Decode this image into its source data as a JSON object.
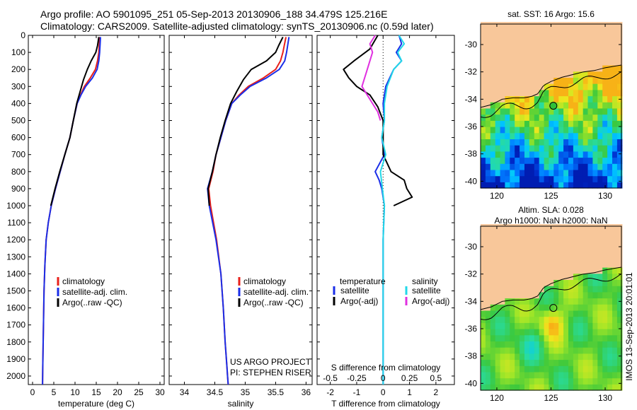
{
  "header": {
    "line1": "Argo profile: AO 5901095_251 05-Sep-2013 20130906_188 34.479S 125.216E",
    "line2": "Climatology: CARS2009. Satellite-adjusted climatology: synTS_20130906.nc (0.59d later)"
  },
  "colors": {
    "climatology": "#e8201a",
    "satellite": "#1a2ee8",
    "argo": "#000000",
    "salinity_satellite": "#22d8e8",
    "salinity_argo": "#e030e0",
    "land": "#f8c79a"
  },
  "watermark": "IMOS 13-Sep-2013 20:01:01",
  "project": {
    "line1": "US ARGO PROJECT",
    "line2": "PI: STEPHEN RISER"
  },
  "chart_data": [
    {
      "type": "line",
      "xlabel": "temperature (deg C)",
      "xlim": [
        -1,
        31
      ],
      "ylim": [
        2050,
        0
      ],
      "xticks": [
        0,
        5,
        10,
        15,
        20,
        25,
        30
      ],
      "yticks": [
        0,
        100,
        200,
        300,
        400,
        500,
        600,
        700,
        800,
        900,
        1000,
        1100,
        1200,
        1300,
        1400,
        1500,
        1600,
        1700,
        1800,
        1900,
        2000
      ],
      "legend": [
        "climatology",
        "satellite-adj. clim.",
        "Argo(..raw -QC)"
      ],
      "series": [
        {
          "name": "climatology",
          "color": "#e8201a",
          "x": [
            15.8,
            15.6,
            15.3,
            14.8,
            13.6,
            12.2,
            11.3,
            10.5,
            9.6,
            8.8,
            7.6,
            6.5,
            5.4,
            4.4,
            3.7,
            3.2,
            2.9,
            2.7,
            2.6,
            2.5,
            2.4,
            2.35
          ],
          "y": [
            10,
            100,
            150,
            200,
            250,
            300,
            350,
            400,
            500,
            600,
            700,
            800,
            900,
            1000,
            1100,
            1200,
            1350,
            1500,
            1650,
            1800,
            1950,
            2050
          ]
        },
        {
          "name": "satellite-adj. clim.",
          "color": "#1a2ee8",
          "x": [
            16.0,
            15.8,
            15.6,
            15.2,
            14.1,
            12.5,
            11.4,
            10.5,
            9.6,
            8.8,
            7.6,
            6.5,
            5.4,
            4.4,
            3.7,
            3.2,
            2.9,
            2.7,
            2.6,
            2.5,
            2.4,
            2.35
          ],
          "y": [
            10,
            100,
            150,
            200,
            250,
            300,
            350,
            400,
            500,
            600,
            700,
            800,
            900,
            1000,
            1100,
            1200,
            1350,
            1500,
            1650,
            1800,
            1950,
            2050
          ]
        },
        {
          "name": "Argo(..raw -QC)",
          "color": "#000000",
          "x": [
            15.6,
            15.3,
            14.9,
            13.8,
            12.9,
            12.0,
            11.2,
            10.4,
            9.6,
            8.8,
            7.6,
            6.4,
            5.3,
            4.3
          ],
          "y": [
            10,
            60,
            100,
            150,
            200,
            260,
            330,
            400,
            500,
            600,
            700,
            800,
            900,
            1000
          ]
        }
      ]
    },
    {
      "type": "line",
      "xlabel": "salinity",
      "xlim": [
        33.75,
        36.1
      ],
      "ylim": [
        2050,
        0
      ],
      "xticks": [
        34,
        34.5,
        35,
        35.5,
        36
      ],
      "xticklabels": [
        "34",
        "34.5",
        "35",
        "35.5",
        "36"
      ],
      "legend": [
        "climatology",
        "satellite-adj. clim.",
        "Argo(..raw -QC)"
      ],
      "series": [
        {
          "name": "climatology",
          "color": "#e8201a",
          "x": [
            35.67,
            35.62,
            35.58,
            35.5,
            35.3,
            35.05,
            34.9,
            34.78,
            34.68,
            34.6,
            34.52,
            34.47,
            34.4,
            34.43,
            34.53,
            34.6,
            34.64,
            34.67,
            34.7,
            34.71,
            34.72
          ],
          "y": [
            10,
            100,
            150,
            200,
            250,
            300,
            350,
            400,
            500,
            600,
            700,
            800,
            900,
            1000,
            1200,
            1400,
            1600,
            1800,
            1950,
            2000,
            2050
          ]
        },
        {
          "name": "satellite-adj. clim.",
          "color": "#1a2ee8",
          "x": [
            35.72,
            35.68,
            35.65,
            35.56,
            35.35,
            35.08,
            34.92,
            34.78,
            34.68,
            34.6,
            34.52,
            34.46,
            34.38,
            34.41,
            34.52,
            34.6,
            34.64,
            34.67,
            34.7,
            34.71,
            34.72
          ],
          "y": [
            10,
            100,
            150,
            200,
            250,
            300,
            350,
            400,
            500,
            600,
            700,
            800,
            900,
            1000,
            1200,
            1400,
            1600,
            1800,
            1950,
            2000,
            2050
          ]
        },
        {
          "name": "Argo(..raw -QC)",
          "color": "#000000",
          "x": [
            35.62,
            35.55,
            35.5,
            35.35,
            35.1,
            34.97,
            34.86,
            34.76,
            34.67,
            34.59,
            34.52,
            34.46,
            34.39,
            34.41
          ],
          "y": [
            10,
            60,
            100,
            150,
            200,
            260,
            330,
            400,
            500,
            600,
            700,
            800,
            900,
            1000
          ]
        }
      ]
    },
    {
      "type": "line",
      "xlabel": "T difference from climatology",
      "xlabel_top": "S difference from climatology",
      "xlim": [
        -2.5,
        2.7
      ],
      "ylim": [
        2050,
        0
      ],
      "xticks": [
        -2,
        -1,
        0,
        1,
        2
      ],
      "top_ticks": [
        "-0.5",
        "-0.25",
        "0",
        "0.25",
        "0.5"
      ],
      "top_tick_pos": [
        -2,
        -1,
        0,
        1,
        2
      ],
      "legend": {
        "temperature": [
          "temperature",
          "satellite",
          "Argo(-adj)"
        ],
        "salinity": [
          "salinity",
          "satellite",
          "Argo(-adj)"
        ]
      },
      "series": [
        {
          "name": "satellite",
          "color": "#1a2ee8",
          "x": [
            0.6,
            0.7,
            0.5,
            0.7,
            0.4,
            0.1,
            0.0,
            0.05,
            -0.05,
            0.05,
            -0.3,
            -0.15,
            -0.05,
            0.05,
            0.0,
            0.0,
            0.0,
            0.0,
            0.0,
            0.0
          ],
          "y": [
            0,
            50,
            100,
            150,
            200,
            300,
            400,
            500,
            600,
            700,
            800,
            850,
            900,
            1000,
            1200,
            1400,
            1600,
            1800,
            1950,
            2050
          ]
        },
        {
          "name": "Argo(-adj)",
          "color": "#000000",
          "x": [
            -0.2,
            -0.5,
            -1.1,
            -1.5,
            -1.3,
            -1.0,
            -0.5,
            -0.2,
            0.0,
            0.0,
            0.3,
            0.8,
            0.9,
            1.1,
            0.4
          ],
          "y": [
            0,
            80,
            150,
            200,
            250,
            300,
            350,
            420,
            500,
            700,
            800,
            850,
            900,
            950,
            1000
          ]
        },
        {
          "name": "satellite",
          "color": "#22d8e8",
          "x": [
            0.6,
            0.8,
            0.55,
            0.7,
            0.4,
            0.15,
            0.05,
            0.05,
            -0.05,
            0.1,
            -0.1,
            0.05,
            0.0,
            0.0,
            0.0,
            0.0
          ],
          "y": [
            0,
            50,
            100,
            150,
            200,
            300,
            400,
            500,
            600,
            700,
            800,
            1000,
            1200,
            1400,
            1600,
            2050
          ]
        },
        {
          "name": "Argo(-adj)",
          "color": "#e030e0",
          "x": [
            -0.3,
            -0.5,
            -0.4,
            -0.6,
            -0.8,
            -0.4,
            -0.2,
            -0.1
          ],
          "y": [
            0,
            50,
            100,
            200,
            300,
            400,
            450,
            500
          ]
        }
      ]
    },
    {
      "type": "heatmap",
      "title": "sat. SST: 16 Argo: 15.6",
      "xlim": [
        118.5,
        131.5
      ],
      "ylim": [
        -40.5,
        -28.5
      ],
      "xticks": [
        120,
        125,
        130
      ],
      "yticks": [
        -30,
        -32,
        -34,
        -36,
        -38,
        -40
      ],
      "marker": {
        "lon": 125.216,
        "lat": -34.479
      }
    },
    {
      "type": "heatmap",
      "title": "Altim. SLA: 0.028",
      "subtitle": "Argo h1000: NaN h2000: NaN",
      "xlim": [
        118.5,
        131.5
      ],
      "ylim": [
        -40.5,
        -28.5
      ],
      "xticks": [
        120,
        125,
        130
      ],
      "yticks": [
        -30,
        -32,
        -34,
        -36,
        -38,
        -40
      ],
      "marker": {
        "lon": 125.216,
        "lat": -34.479
      }
    }
  ]
}
